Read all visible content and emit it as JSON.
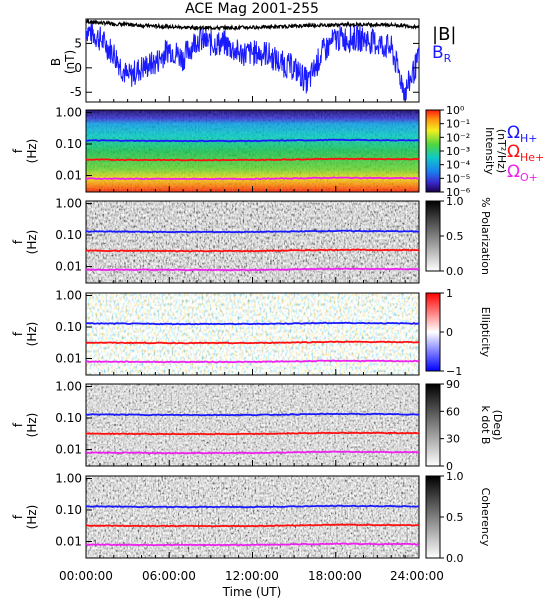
{
  "title": "ACE Mag 2001-255",
  "colors": {
    "black": "#000000",
    "blue": "#1a1aff",
    "red": "#ff1010",
    "magenta": "#ee22ee"
  },
  "legend": {
    "total": "|B|",
    "radial": "B",
    "radial_sub": "R"
  },
  "xaxis": {
    "ticks": [
      "00:00:00",
      "06:00:00",
      "12:00:00",
      "18:00:00",
      "24:00:00"
    ],
    "label": "Time (UT)"
  },
  "ion_labels": [
    {
      "sym": "Ω",
      "sub": "H+",
      "color": "#1a1aff"
    },
    {
      "sym": "Ω",
      "sub": "He+",
      "color": "#ff1010"
    },
    {
      "sym": "Ω",
      "sub": "O+",
      "color": "#ee22ee"
    }
  ],
  "freq_ticks": [
    "1.00",
    "0.10",
    "0.01"
  ],
  "panel_ylabel": {
    "main": "f",
    "unit": "(Hz)"
  },
  "colorbars": [
    {
      "label": "Intensity",
      "unit": "(nT²/Hz)",
      "ticks": [
        "10⁰",
        "10⁻¹",
        "10⁻²",
        "10⁻³",
        "10⁻⁴",
        "10⁻⁵",
        "10⁻⁶"
      ]
    },
    {
      "label": "% Polarization",
      "unit": "",
      "ticks": [
        "1.0",
        "0.5",
        "0.0"
      ]
    },
    {
      "label": "Ellipticity",
      "unit": "",
      "ticks": [
        "1",
        "0",
        "−1"
      ]
    },
    {
      "label": "k dot B",
      "unit": "(Deg)",
      "ticks": [
        "90",
        "60",
        "30",
        "0"
      ]
    },
    {
      "label": "Coherency",
      "unit": "",
      "ticks": [
        "1.0",
        "0.5",
        "0.0"
      ]
    }
  ],
  "chart_data": [
    {
      "type": "line",
      "title": "ACE Mag 2001-255",
      "ylabel": "B (nT)",
      "xlabel": "Time (UT)",
      "xlim_hours": [
        0,
        24
      ],
      "ylim": [
        -7,
        10
      ],
      "yticks": [
        5,
        0,
        -5
      ],
      "series": [
        {
          "name": "|B|",
          "color": "#000000",
          "x": [
            0,
            2,
            4,
            6,
            8,
            10,
            12,
            14,
            16,
            18,
            20,
            22,
            24
          ],
          "y": [
            9.5,
            9.0,
            8.7,
            8.4,
            8.2,
            8.2,
            8.3,
            8.4,
            8.7,
            8.8,
            8.9,
            8.8,
            8.4
          ]
        },
        {
          "name": "BR",
          "color": "#1a1aff",
          "x": [
            0,
            1,
            2,
            3,
            4,
            5,
            6,
            7,
            8,
            9,
            10,
            11,
            12,
            13,
            14,
            15,
            16,
            17,
            18,
            19,
            20,
            21,
            22,
            23,
            24
          ],
          "y": [
            8,
            6,
            3,
            -2,
            0,
            1,
            4,
            2,
            6,
            5,
            5,
            3,
            3,
            3,
            1,
            0,
            -3,
            3,
            6,
            6,
            6,
            5,
            4,
            -5,
            2
          ]
        }
      ]
    },
    {
      "type": "heatmap",
      "name": "Intensity",
      "ylabel": "f (Hz)",
      "y_scale": "log",
      "ylim": [
        0.003,
        1.2
      ],
      "colorbar_range": [
        1e-06,
        1
      ],
      "colorbar_scale": "log"
    },
    {
      "type": "heatmap",
      "name": "% Polarization",
      "ylabel": "f (Hz)",
      "y_scale": "log",
      "colorbar_range": [
        0,
        1
      ]
    },
    {
      "type": "heatmap",
      "name": "Ellipticity",
      "ylabel": "f (Hz)",
      "y_scale": "log",
      "colorbar_range": [
        -1,
        1
      ]
    },
    {
      "type": "heatmap",
      "name": "k dot B",
      "ylabel": "f (Hz)",
      "y_scale": "log",
      "colorbar_range": [
        0,
        90
      ]
    },
    {
      "type": "heatmap",
      "name": "Coherency",
      "ylabel": "f (Hz)",
      "y_scale": "log",
      "colorbar_range": [
        0,
        1
      ]
    },
    {
      "type": "line",
      "name": "gyrofrequencies",
      "y_unit": "Hz",
      "series": [
        {
          "name": "ΩH+",
          "color": "#1a1aff",
          "x": [
            0,
            6,
            12,
            18,
            24
          ],
          "y": [
            0.13,
            0.125,
            0.125,
            0.135,
            0.13
          ]
        },
        {
          "name": "ΩHe+",
          "color": "#ff1010",
          "x": [
            0,
            6,
            12,
            18,
            24
          ],
          "y": [
            0.032,
            0.031,
            0.031,
            0.034,
            0.033
          ]
        },
        {
          "name": "ΩO+",
          "color": "#ee22ee",
          "x": [
            0,
            6,
            12,
            18,
            24
          ],
          "y": [
            0.008,
            0.0078,
            0.0078,
            0.0085,
            0.0082
          ]
        }
      ]
    }
  ]
}
